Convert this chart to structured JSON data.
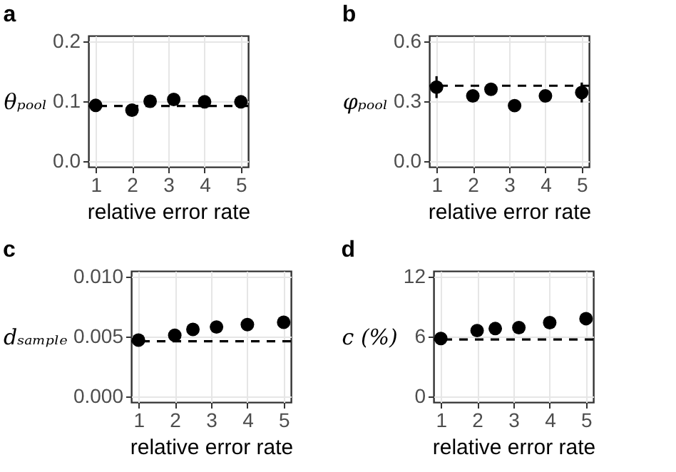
{
  "chart_data": [
    {
      "type": "scatter",
      "title": "a",
      "xlabel": "relative error rate",
      "ylabel": "θₚₒₒₗ",
      "x": [
        1,
        2,
        2.5,
        3.15,
        4,
        5
      ],
      "values": [
        0.093,
        0.085,
        0.1,
        0.103,
        0.099,
        0.099
      ],
      "color": "#000000",
      "marker": "circle",
      "grid": true,
      "xlim": [
        0.8,
        5.2
      ],
      "xticks": [
        1,
        2,
        3,
        4,
        5
      ],
      "ylim": [
        -0.01,
        0.21
      ],
      "yticks": [
        {
          "value": 0,
          "label": "0.0"
        },
        {
          "value": 0.1,
          "label": "0.1"
        },
        {
          "value": 0.2,
          "label": "0.2"
        }
      ],
      "ref_lines": [
        {
          "axis": "y",
          "value": 0.092,
          "line_style": "dashed"
        }
      ]
    },
    {
      "type": "scatter",
      "title": "b",
      "xlabel": "relative error rate",
      "ylabel": "φₚₒₒₗ",
      "x": [
        1,
        2,
        2.5,
        3.15,
        4,
        5
      ],
      "values": [
        0.371,
        0.327,
        0.36,
        0.278,
        0.327,
        0.344
      ],
      "errors": [
        0.055,
        0.03,
        0.01,
        0.02,
        0.03,
        0.05
      ],
      "color": "#000000",
      "marker": "circle",
      "grid": true,
      "xlim": [
        0.8,
        5.2
      ],
      "xticks": [
        1,
        2,
        3,
        4,
        5
      ],
      "ylim": [
        -0.03,
        0.63
      ],
      "yticks": [
        {
          "value": 0,
          "label": "0.0"
        },
        {
          "value": 0.3,
          "label": "0.3"
        },
        {
          "value": 0.6,
          "label": "0.6"
        }
      ],
      "ref_lines": [
        {
          "axis": "y",
          "value": 0.378,
          "line_style": "dashed"
        }
      ]
    },
    {
      "type": "scatter",
      "title": "c",
      "xlabel": "relative error rate",
      "ylabel": "dₛₐₘₚₗₑ",
      "x": [
        1,
        2,
        2.5,
        3.15,
        4,
        5
      ],
      "values": [
        0.0047,
        0.0051,
        0.0056,
        0.0058,
        0.006,
        0.0062
      ],
      "color": "#000000",
      "marker": "circle",
      "grid": true,
      "xlim": [
        0.8,
        5.2
      ],
      "xticks": [
        1,
        2,
        3,
        4,
        5
      ],
      "ylim": [
        -0.0005,
        0.0105
      ],
      "yticks": [
        {
          "value": 0,
          "label": "0.000"
        },
        {
          "value": 0.005,
          "label": "0.005"
        },
        {
          "value": 0.01,
          "label": "0.010"
        }
      ],
      "ref_lines": [
        {
          "axis": "y",
          "value": 0.0046,
          "line_style": "dashed"
        }
      ]
    },
    {
      "type": "scatter",
      "title": "d",
      "xlabel": "relative error rate",
      "ylabel": "c (%)",
      "x": [
        1,
        2,
        2.5,
        3.15,
        4,
        5
      ],
      "values": [
        5.8,
        6.6,
        6.8,
        6.9,
        7.4,
        7.8
      ],
      "color": "#000000",
      "marker": "circle",
      "grid": true,
      "xlim": [
        0.8,
        5.2
      ],
      "xticks": [
        1,
        2,
        3,
        4,
        5
      ],
      "ylim": [
        -0.6,
        12.6
      ],
      "yticks": [
        0,
        6,
        12
      ],
      "ref_lines": [
        {
          "axis": "y",
          "value": 5.7,
          "line_style": "dashed"
        }
      ]
    }
  ]
}
